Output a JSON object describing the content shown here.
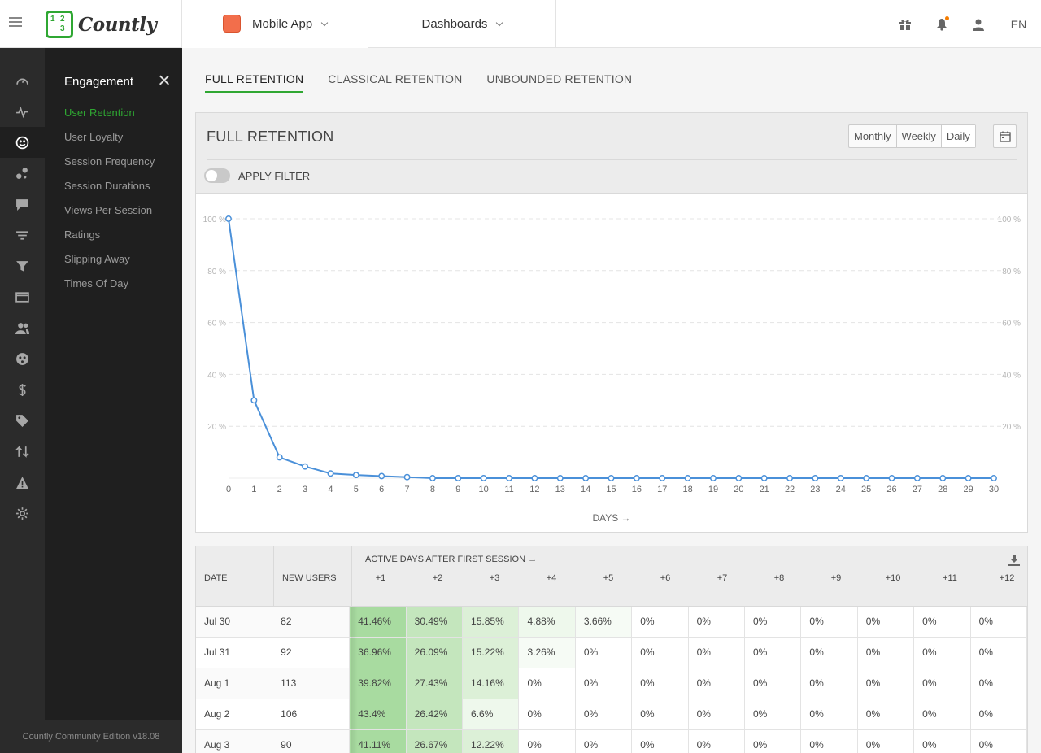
{
  "header": {
    "logo_text": "Countly",
    "logo_digits": [
      "1",
      "2",
      "3"
    ],
    "app_name": "Mobile App",
    "app_color": "#f26e4b",
    "dashboards_label": "Dashboards",
    "lang": "EN",
    "icons": [
      "gift-icon",
      "bell-icon",
      "user-icon"
    ]
  },
  "rail": {
    "icons": [
      "dashboard-gauge-icon",
      "analytics-pulse-icon",
      "engagement-smiley-icon",
      "events-icon",
      "chat-icon",
      "filter-lines-icon",
      "funnel-icon",
      "card-icon",
      "users-icon",
      "crashes-icon",
      "revenue-icon",
      "tag-icon",
      "flows-icon",
      "alert-icon",
      "settings-icon"
    ],
    "active_index": 2
  },
  "submenu": {
    "title": "Engagement",
    "items": [
      "User Retention",
      "User Loyalty",
      "Session Frequency",
      "Session Durations",
      "Views Per Session",
      "Ratings",
      "Slipping Away",
      "Times Of Day"
    ],
    "active_index": 0
  },
  "footer": {
    "version": "Countly Community Edition v18.08"
  },
  "tabs": [
    "FULL RETENTION",
    "CLASSICAL RETENTION",
    "UNBOUNDED RETENTION"
  ],
  "panel": {
    "title": "FULL RETENTION",
    "periods": [
      "Monthly",
      "Weekly",
      "Daily"
    ],
    "selected_period": "Daily",
    "filter_label": "APPLY FILTER"
  },
  "chart_data": {
    "type": "line",
    "xlabel": "DAYS →",
    "ylabel": "",
    "x": [
      0,
      1,
      2,
      3,
      4,
      5,
      6,
      7,
      8,
      9,
      10,
      11,
      12,
      13,
      14,
      15,
      16,
      17,
      18,
      19,
      20,
      21,
      22,
      23,
      24,
      25,
      26,
      27,
      28,
      29,
      30
    ],
    "series": [
      {
        "values": [
          100,
          30,
          8,
          4.5,
          1.8,
          1.2,
          0.8,
          0.4,
          0,
          0,
          0,
          0,
          0,
          0,
          0,
          0,
          0,
          0,
          0,
          0,
          0,
          0,
          0,
          0,
          0,
          0,
          0,
          0,
          0,
          0,
          0
        ]
      }
    ],
    "ylim": [
      0,
      100
    ],
    "yticks": [
      20,
      40,
      60,
      80,
      100
    ],
    "ytick_suffix": " %",
    "grid": true,
    "line_color": "#4a90d9"
  },
  "table": {
    "headers": {
      "date": "DATE",
      "new_users": "NEW USERS",
      "active": "ACTIVE DAYS AFTER FIRST SESSION →"
    },
    "day_cols": [
      "+1",
      "+2",
      "+3",
      "+4",
      "+5",
      "+6",
      "+7",
      "+8",
      "+9",
      "+10",
      "+11",
      "+12"
    ],
    "rows": [
      {
        "date": "Jul 30",
        "users": "82",
        "cells": [
          "41.46%",
          "30.49%",
          "15.85%",
          "4.88%",
          "3.66%",
          "0%",
          "0%",
          "0%",
          "0%",
          "0%",
          "0%",
          "0%"
        ]
      },
      {
        "date": "Jul 31",
        "users": "92",
        "cells": [
          "36.96%",
          "26.09%",
          "15.22%",
          "3.26%",
          "0%",
          "0%",
          "0%",
          "0%",
          "0%",
          "0%",
          "0%",
          "0%"
        ]
      },
      {
        "date": "Aug 1",
        "users": "113",
        "cells": [
          "39.82%",
          "27.43%",
          "14.16%",
          "0%",
          "0%",
          "0%",
          "0%",
          "0%",
          "0%",
          "0%",
          "0%",
          "0%"
        ]
      },
      {
        "date": "Aug 2",
        "users": "106",
        "cells": [
          "43.4%",
          "26.42%",
          "6.6%",
          "0%",
          "0%",
          "0%",
          "0%",
          "0%",
          "0%",
          "0%",
          "0%",
          "0%"
        ]
      },
      {
        "date": "Aug 3",
        "users": "90",
        "cells": [
          "41.11%",
          "26.67%",
          "12.22%",
          "0%",
          "0%",
          "0%",
          "0%",
          "0%",
          "0%",
          "0%",
          "0%",
          "0%"
        ]
      }
    ]
  }
}
